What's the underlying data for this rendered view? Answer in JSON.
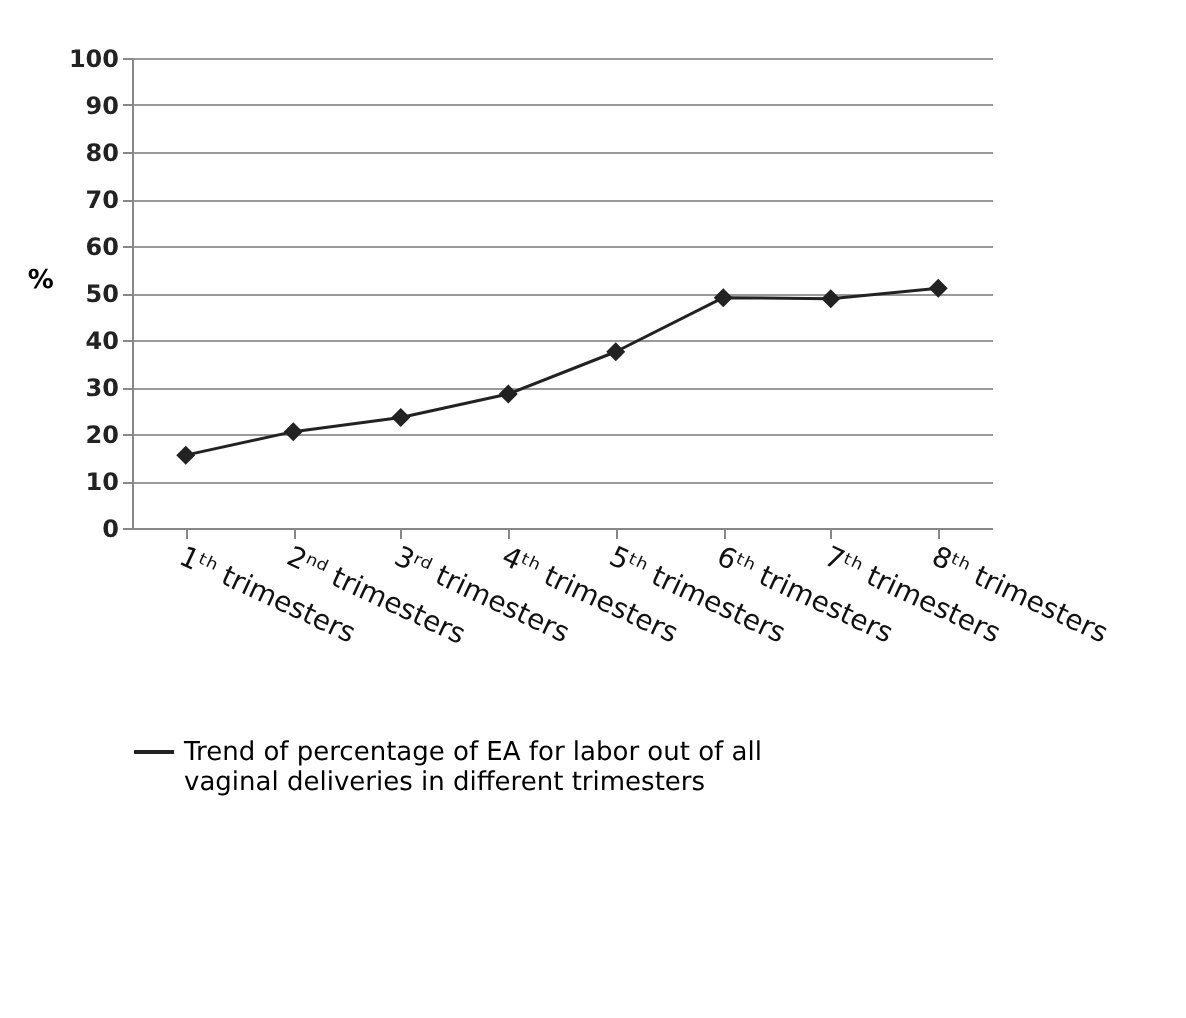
{
  "chart_data": {
    "type": "line",
    "ylabel": "%",
    "categories": [
      "1ᵗʰ trimesters",
      "2ⁿᵈ trimesters",
      "3ʳᵈ trimesters",
      "4ᵗʰ trimesters",
      "5ᵗʰ trimesters",
      "6ᵗʰ trimesters",
      "7ᵗʰ trimesters",
      "8ᵗʰ trimesters"
    ],
    "series": [
      {
        "name": "Trend of percentage of EA for labor out of all vaginal deliveries in different trimesters",
        "color": "#222222",
        "values": [
          15.5,
          20.5,
          23.5,
          28.5,
          37.5,
          49,
          48.8,
          51
        ]
      }
    ],
    "ylim": [
      0,
      100
    ],
    "yticks": [
      0,
      10,
      20,
      30,
      40,
      50,
      60,
      70,
      80,
      90,
      100
    ],
    "grid": "y",
    "legend": "bottom",
    "marker": "diamond",
    "line_style": "solid"
  }
}
